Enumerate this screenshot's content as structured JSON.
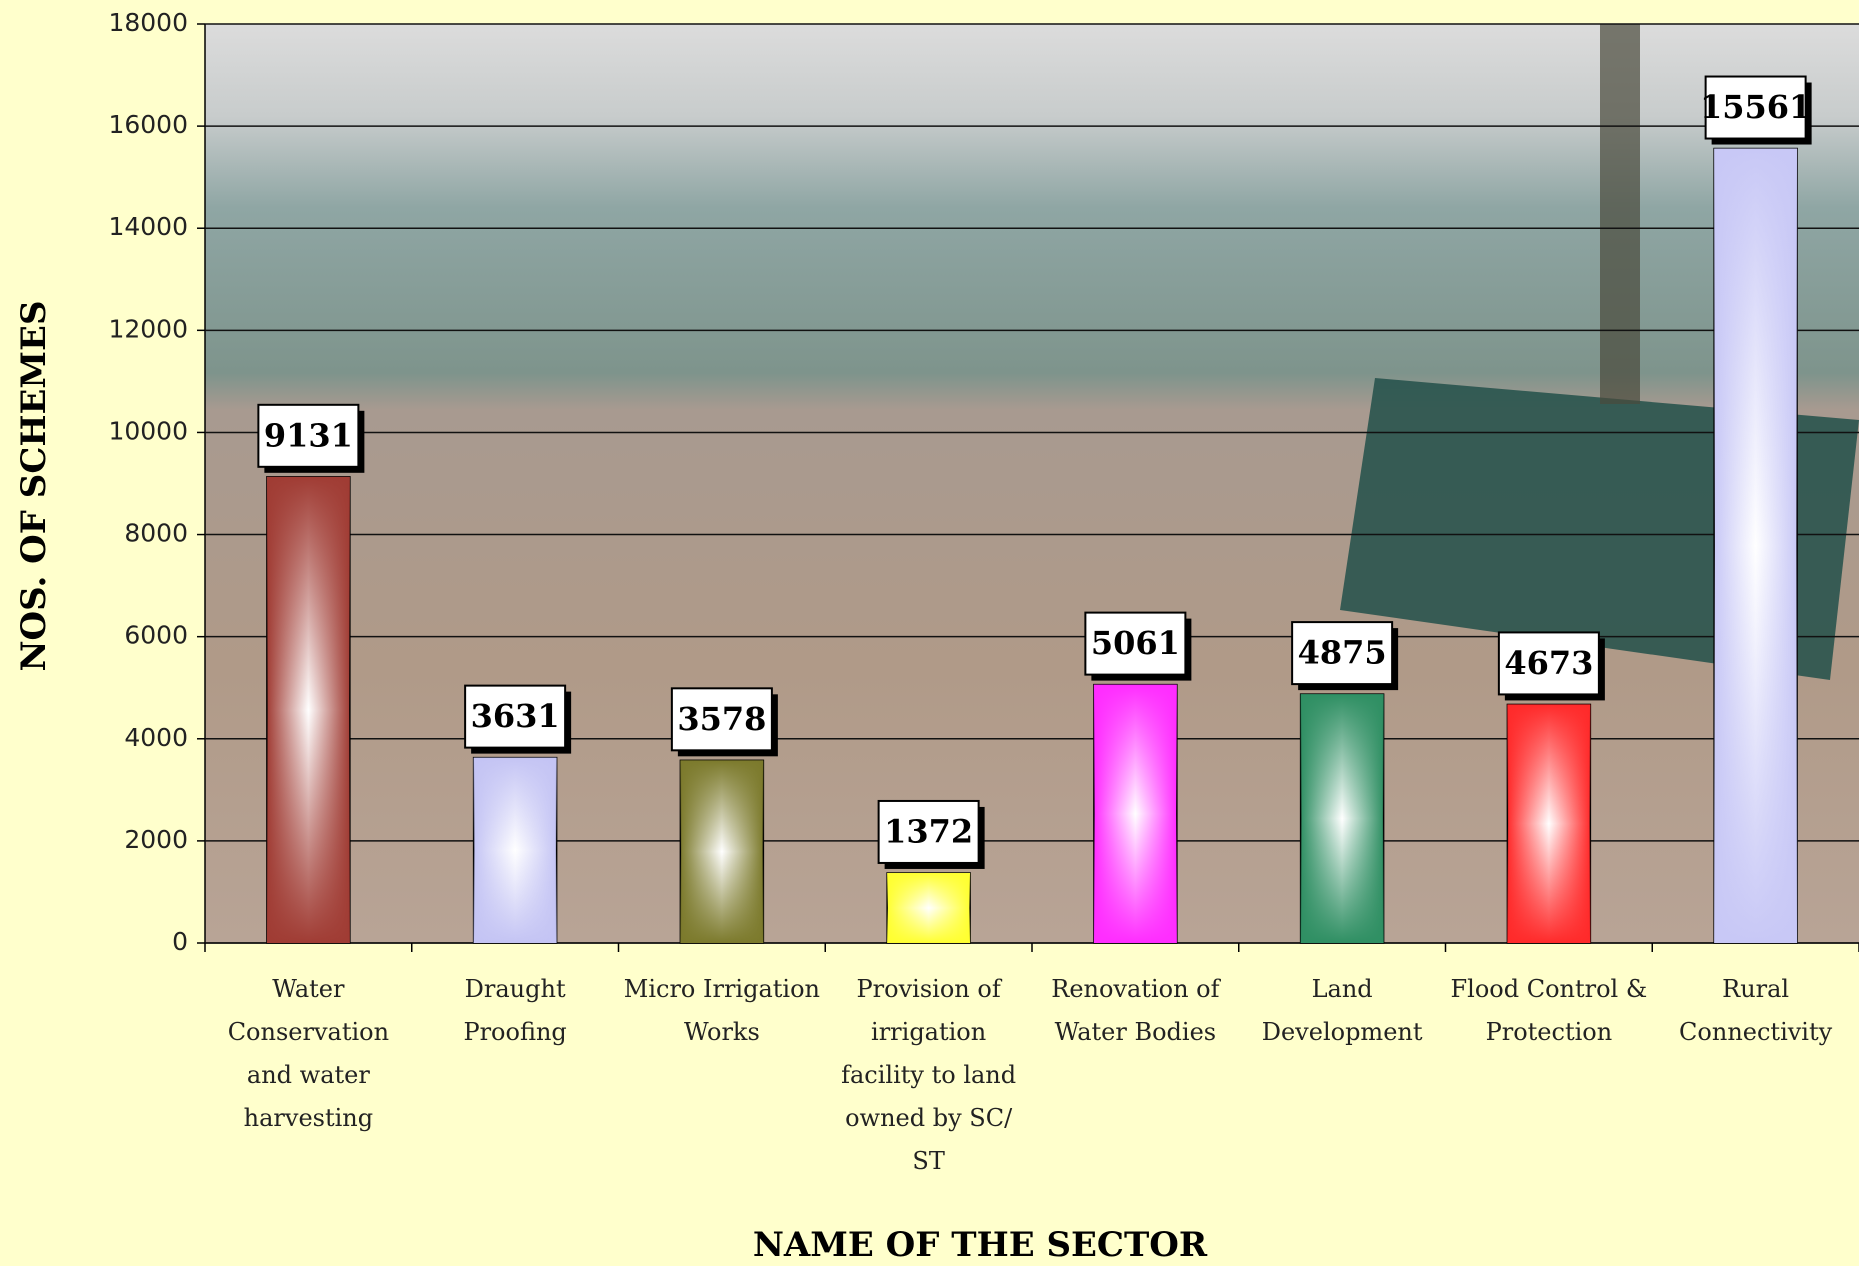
{
  "chart_data": {
    "type": "bar",
    "x_label": "NAME OF THE SECTOR",
    "y_label": "NOS. OF SCHEMES",
    "categories": [
      "Water Conservation and water harvesting",
      "Draught Proofing",
      "Micro Irrigation Works",
      "Provision of irrigation facility to land owned by SC/ ST",
      "Renovation of Water Bodies",
      "Land Development",
      "Flood Control & Protection",
      "Rural Connectivity"
    ],
    "values": [
      9131,
      3631,
      3578,
      1372,
      5061,
      4875,
      4673,
      15561
    ],
    "colors": [
      "#a03c34",
      "#c4c4f4",
      "#7c7a2c",
      "#ffff30",
      "#ff2cff",
      "#2f8f63",
      "#ff2a2a",
      "#c8c8f6"
    ],
    "ylim": [
      0,
      18000
    ],
    "yticks": [
      0,
      2000,
      4000,
      6000,
      8000,
      10000,
      12000,
      14000,
      16000,
      18000
    ],
    "grid": true
  }
}
